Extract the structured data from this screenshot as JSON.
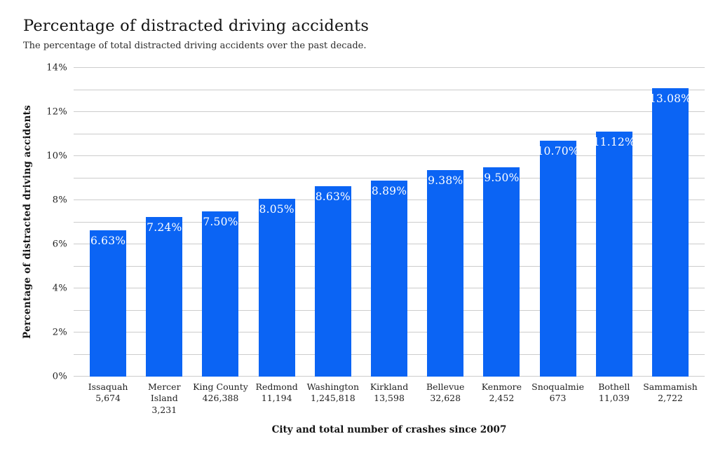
{
  "chart_data": {
    "type": "bar",
    "title": "Percentage of distracted driving accidents",
    "subtitle": "The percentage of total distracted driving accidents over the past decade.",
    "xlabel": "City and total number of crashes since 2007",
    "ylabel": "Percentage of distracted driving accidents",
    "ylim": [
      0,
      14
    ],
    "ytick_step": 2,
    "grid_step": 1,
    "ytick_suffix": "%",
    "grid": true,
    "legend": "none",
    "bar_color": "#0b64f4",
    "value_label_color": "#ffffff",
    "gridline_color": "#cccccc",
    "categories": [
      "Issaquah",
      "Mercer Island",
      "King County",
      "Redmond",
      "Washington",
      "Kirkland",
      "Bellevue",
      "Kenmore",
      "Snoqualmie",
      "Bothell",
      "Sammamish"
    ],
    "crash_counts": [
      "5,674",
      "3,231",
      "426,388",
      "11,194",
      "1,245,818",
      "13,598",
      "32,628",
      "2,452",
      "673",
      "11,039",
      "2,722"
    ],
    "values": [
      6.63,
      7.24,
      7.5,
      8.05,
      8.63,
      8.89,
      9.38,
      9.5,
      10.7,
      11.12,
      13.08
    ],
    "value_labels": [
      "6.63%",
      "7.24%",
      "7.50%",
      "8.05%",
      "8.63%",
      "8.89%",
      "9.38%",
      "9.50%",
      "10.70%",
      "11.12%",
      "13.08%"
    ]
  }
}
